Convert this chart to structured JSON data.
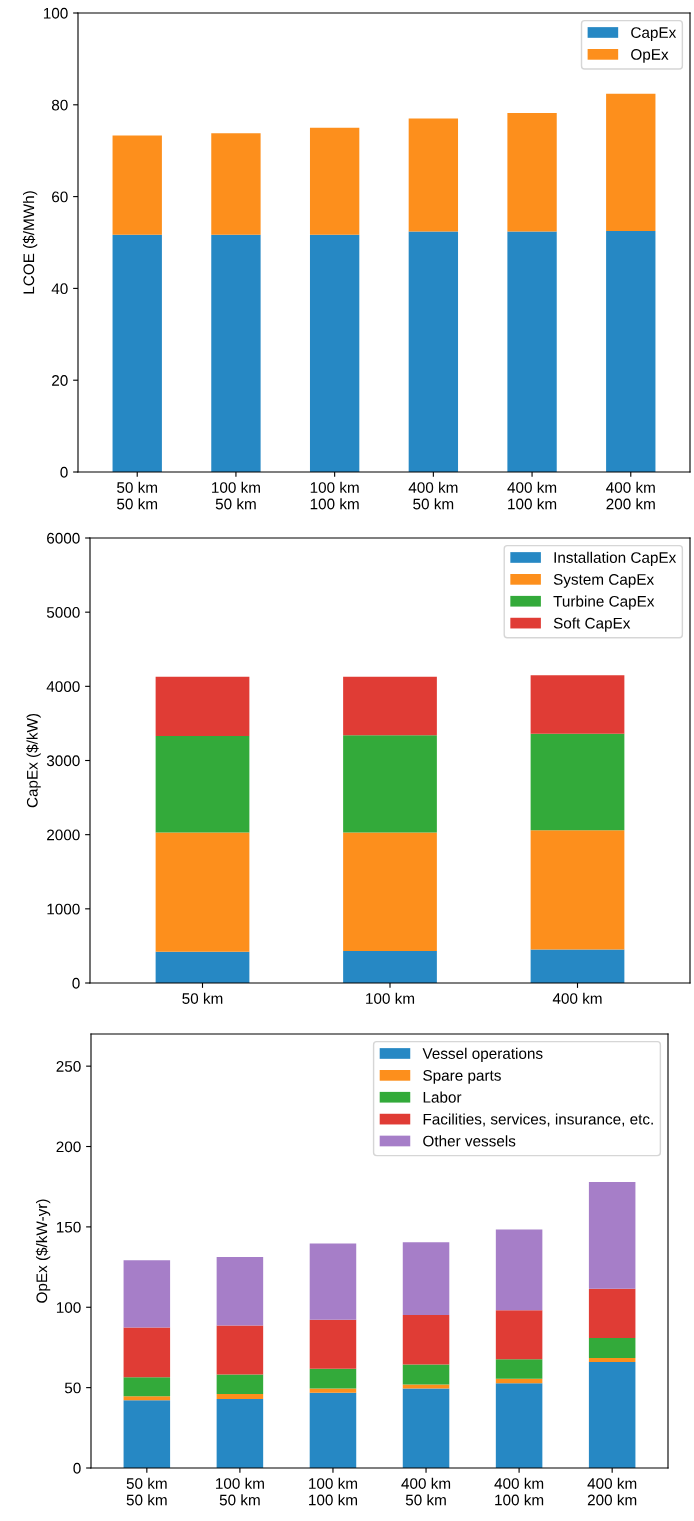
{
  "chart_data": [
    {
      "type": "bar",
      "stacked": true,
      "ylabel": "LCOE ($/MWh)",
      "categories": [
        "50 km\n50 km",
        "100 km\n50 km",
        "100 km\n100 km",
        "400 km\n50 km",
        "400 km\n100 km",
        "400 km\n200 km"
      ],
      "series": [
        {
          "name": "CapEx",
          "color": "#2688c4",
          "values": [
            51.7,
            51.7,
            51.7,
            52.4,
            52.4,
            52.5
          ]
        },
        {
          "name": "OpEx",
          "color": "#fd8f1c",
          "values": [
            21.6,
            22.1,
            23.3,
            24.6,
            25.8,
            29.9
          ]
        }
      ],
      "ylim": [
        0,
        100
      ],
      "yticks": [
        0,
        20,
        40,
        60,
        80,
        100
      ],
      "legend": "top right",
      "grid": false
    },
    {
      "type": "bar",
      "stacked": true,
      "ylabel": "CapEx ($/kW)",
      "categories": [
        "50 km",
        "100 km",
        "400 km"
      ],
      "series": [
        {
          "name": "Installation CapEx",
          "color": "#2688c4",
          "values": [
            420,
            430,
            450
          ]
        },
        {
          "name": "System CapEx",
          "color": "#fd8f1c",
          "values": [
            1610,
            1600,
            1610
          ]
        },
        {
          "name": "Turbine CapEx",
          "color": "#33aa3a",
          "values": [
            1300,
            1310,
            1300
          ]
        },
        {
          "name": "Soft CapEx",
          "color": "#e03c35",
          "values": [
            800,
            790,
            790
          ]
        }
      ],
      "ylim": [
        0,
        6000
      ],
      "yticks": [
        0,
        1000,
        2000,
        3000,
        4000,
        5000,
        6000
      ],
      "legend": "top right",
      "grid": false
    },
    {
      "type": "bar",
      "stacked": true,
      "ylabel": "OpEx ($/kW-yr)",
      "categories": [
        "50 km\n50 km",
        "100 km\n50 km",
        "100 km\n100 km",
        "400 km\n50 km",
        "400 km\n100 km",
        "400 km\n200 km"
      ],
      "series": [
        {
          "name": "Vessel operations",
          "color": "#2688c4",
          "values": [
            42.2,
            43.0,
            46.8,
            49.5,
            52.8,
            66.0
          ]
        },
        {
          "name": "Spare parts",
          "color": "#fd8f1c",
          "values": [
            2.4,
            3.0,
            2.7,
            2.4,
            2.7,
            2.5
          ]
        },
        {
          "name": "Labor",
          "color": "#33aa3a",
          "values": [
            11.9,
            12.2,
            12.2,
            12.5,
            12.1,
            12.4
          ]
        },
        {
          "name": "Facilities, services, insurance, etc.",
          "color": "#e03c35",
          "values": [
            30.9,
            30.5,
            30.6,
            30.8,
            30.6,
            30.6
          ]
        },
        {
          "name": "Other vessels",
          "color": "#a67ec8",
          "values": [
            41.9,
            42.5,
            47.3,
            45.2,
            50.1,
            66.5
          ]
        }
      ],
      "ylim": [
        0,
        270
      ],
      "yticks": [
        0,
        50,
        100,
        150,
        200,
        250
      ],
      "legend": "top right",
      "grid": false
    }
  ]
}
